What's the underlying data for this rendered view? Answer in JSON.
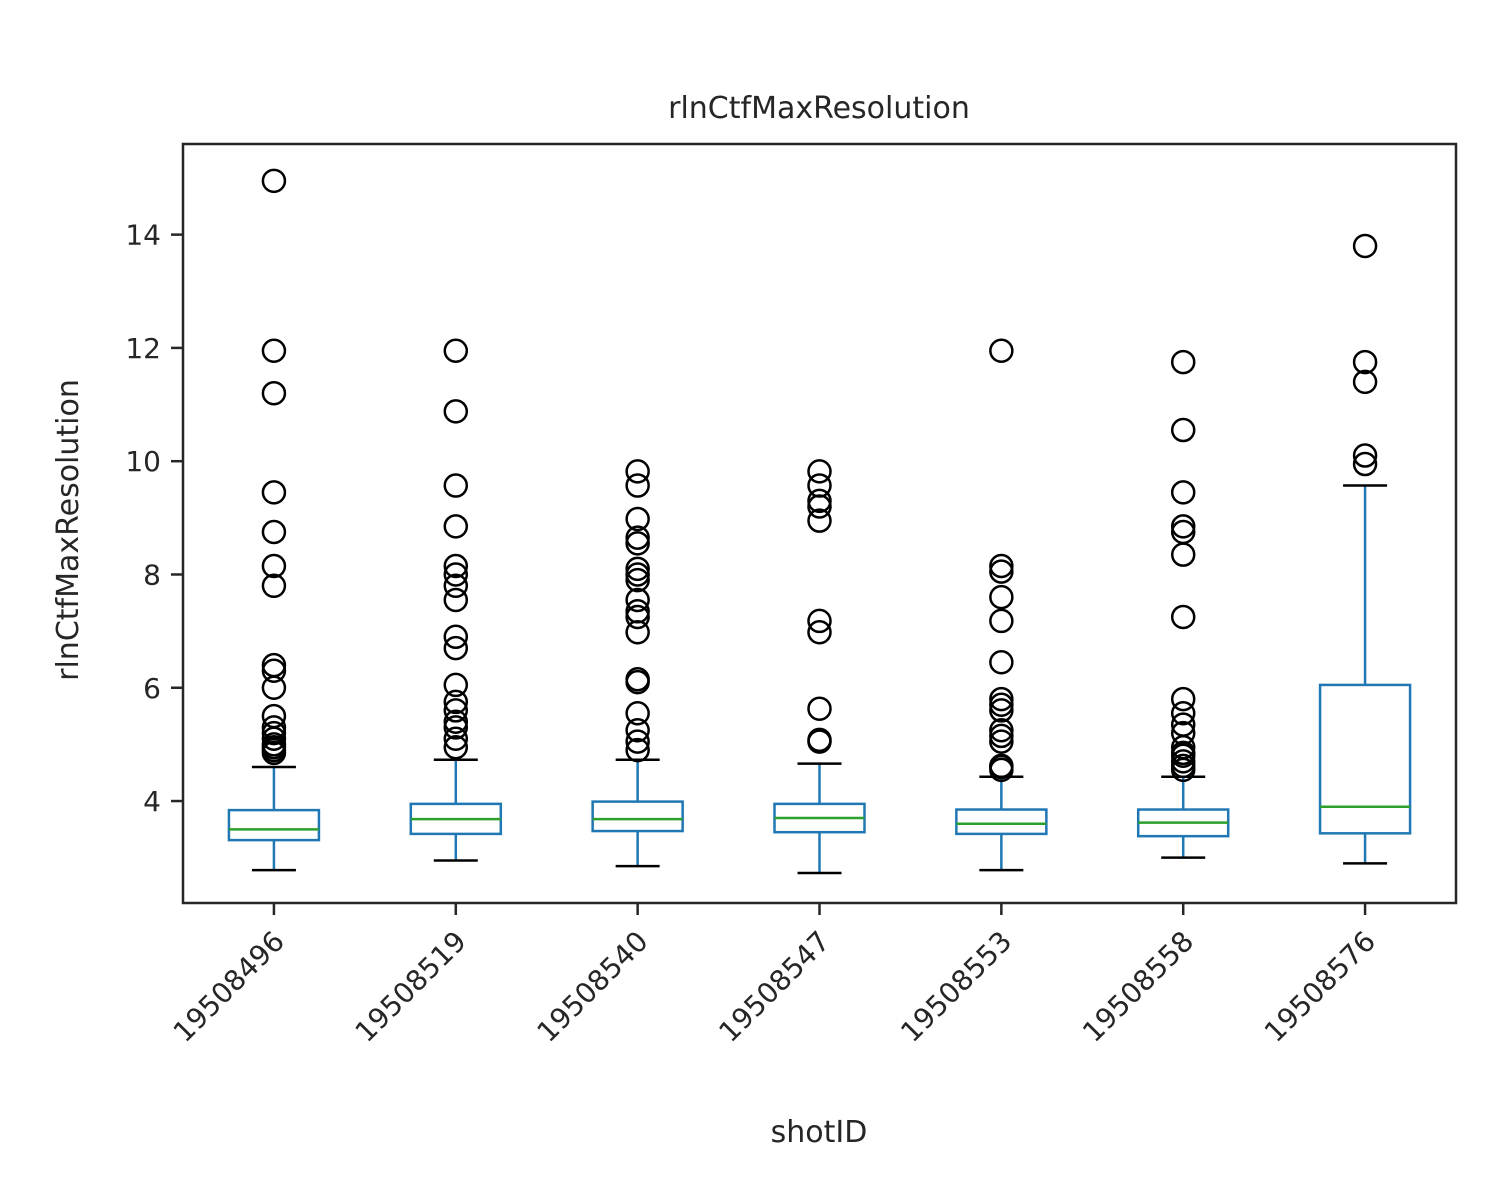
{
  "chart_data": {
    "type": "box",
    "title": "rlnCtfMaxResolution",
    "xlabel": "shotID",
    "ylabel": "rlnCtfMaxResolution",
    "ylim": [
      2.2,
      15.6
    ],
    "yticks": [
      4,
      6,
      8,
      10,
      12,
      14
    ],
    "grid": false,
    "colors": {
      "box": "#1f77b4",
      "median": "#2ca02c",
      "flier": "#000000",
      "axes": "#262626"
    },
    "categories": [
      "19508496",
      "19508519",
      "19508540",
      "19508547",
      "19508553",
      "19508558",
      "19508576"
    ],
    "boxes": [
      {
        "whislo": 2.78,
        "q1": 3.31,
        "med": 3.5,
        "q3": 3.84,
        "whishi": 4.6,
        "fliers": [
          4.85,
          4.9,
          4.95,
          5.0,
          5.1,
          5.2,
          5.3,
          5.5,
          6.0,
          6.3,
          6.4,
          7.8,
          8.15,
          8.75,
          9.45,
          11.2,
          11.95,
          14.95
        ]
      },
      {
        "whislo": 2.95,
        "q1": 3.42,
        "med": 3.68,
        "q3": 3.95,
        "whislo_note": "",
        "whishi": 4.73,
        "fliers": [
          4.95,
          5.1,
          5.3,
          5.4,
          5.6,
          5.75,
          6.05,
          6.7,
          6.9,
          7.55,
          7.8,
          8.0,
          8.15,
          8.85,
          9.57,
          10.88,
          11.95
        ]
      },
      {
        "whislo": 2.85,
        "q1": 3.47,
        "med": 3.68,
        "q3": 3.99,
        "whishi": 4.73,
        "fliers": [
          4.9,
          5.05,
          5.25,
          5.55,
          6.1,
          6.15,
          6.98,
          7.25,
          7.35,
          7.55,
          7.9,
          8.0,
          8.1,
          8.55,
          8.65,
          8.98,
          9.57,
          9.82
        ]
      },
      {
        "whislo": 2.73,
        "q1": 3.45,
        "med": 3.7,
        "q3": 3.95,
        "whishi": 4.66,
        "fliers": [
          5.05,
          5.08,
          5.63,
          6.98,
          7.18,
          8.95,
          9.2,
          9.3,
          9.57,
          9.82
        ]
      },
      {
        "whislo": 2.78,
        "q1": 3.42,
        "med": 3.6,
        "q3": 3.85,
        "whishi": 4.43,
        "fliers": [
          4.55,
          4.6,
          4.62,
          5.05,
          5.15,
          5.25,
          5.6,
          5.7,
          5.8,
          6.45,
          7.18,
          7.6,
          8.05,
          8.15,
          11.95
        ]
      },
      {
        "whislo": 3.0,
        "q1": 3.38,
        "med": 3.62,
        "q3": 3.85,
        "whishi": 4.43,
        "fliers": [
          4.55,
          4.62,
          4.7,
          4.8,
          4.85,
          4.95,
          5.2,
          5.35,
          5.55,
          5.8,
          7.25,
          8.35,
          8.75,
          8.85,
          9.45,
          10.55,
          11.75
        ]
      },
      {
        "whislo": 2.9,
        "q1": 3.43,
        "med": 3.9,
        "q3": 6.05,
        "whishi": 9.57,
        "fliers": [
          9.95,
          10.1,
          11.4,
          11.75,
          13.8
        ]
      }
    ]
  }
}
